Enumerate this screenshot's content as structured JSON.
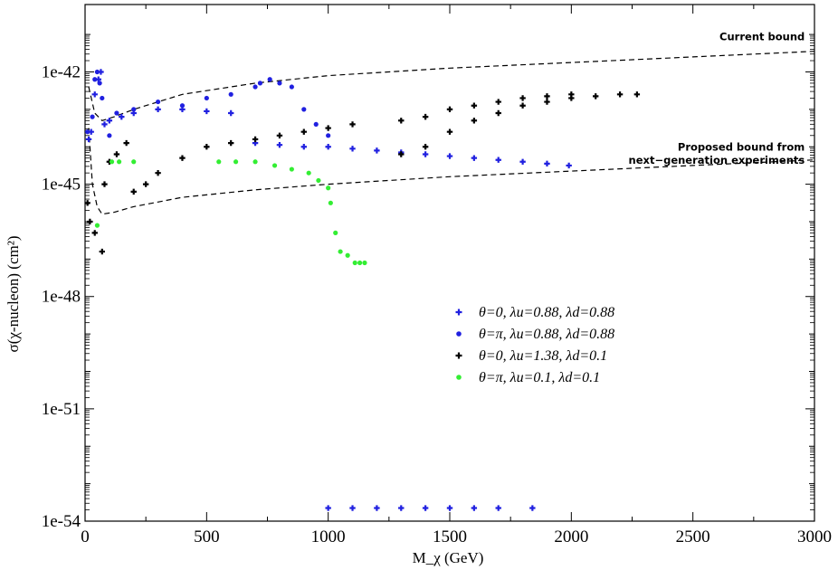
{
  "chart_data": {
    "type": "scatter",
    "title": "",
    "xlabel": "M_χ (GeV)",
    "ylabel": "σ(χ-nucleon) (cm²)",
    "xlim": [
      0,
      3000
    ],
    "ylim_log10": [
      -54,
      -40.2
    ],
    "yscale": "log",
    "grid": false,
    "legend_placement": "center-right",
    "x_ticks": [
      0,
      500,
      1000,
      1500,
      2000,
      2500,
      3000
    ],
    "x_tick_labels": [
      "0",
      "500",
      "1000",
      "1500",
      "2000",
      "2500",
      "3000"
    ],
    "y_ticks_log10": [
      -54,
      -51,
      -48,
      -45,
      -42
    ],
    "y_tick_labels": [
      "1e-54",
      "1e-51",
      "1e-48",
      "1e-45",
      "1e-42"
    ],
    "bounds": [
      {
        "label": "Current bound",
        "points": [
          [
            15,
            -42.4
          ],
          [
            40,
            -43.1
          ],
          [
            70,
            -43.3
          ],
          [
            120,
            -43.2
          ],
          [
            200,
            -43.0
          ],
          [
            400,
            -42.6
          ],
          [
            700,
            -42.3
          ],
          [
            1000,
            -42.1
          ],
          [
            1500,
            -41.9
          ],
          [
            2000,
            -41.75
          ],
          [
            2500,
            -41.6
          ],
          [
            3000,
            -41.45
          ]
        ]
      },
      {
        "label": "Proposed bound from next-generation experiments",
        "points": [
          [
            15,
            -43.5
          ],
          [
            30,
            -45.0
          ],
          [
            50,
            -45.6
          ],
          [
            70,
            -45.8
          ],
          [
            120,
            -45.75
          ],
          [
            200,
            -45.6
          ],
          [
            400,
            -45.35
          ],
          [
            700,
            -45.15
          ],
          [
            1000,
            -45.0
          ],
          [
            1500,
            -44.8
          ],
          [
            2000,
            -44.65
          ],
          [
            2500,
            -44.5
          ],
          [
            3000,
            -44.35
          ]
        ]
      }
    ],
    "annotations": [
      {
        "text": "Current bound",
        "x": 2960,
        "y_log10": -41.15
      },
      {
        "text": "Proposed bound from",
        "x": 2960,
        "y_log10": -44.1
      },
      {
        "text": "next−generation experiments",
        "x": 2960,
        "y_log10": -44.45
      }
    ],
    "series": [
      {
        "name": "θ=0, λu=0.88, λd=0.88",
        "marker": "plus",
        "color": "#2020e0",
        "points": [
          [
            15,
            -43.8
          ],
          [
            25,
            -43.6
          ],
          [
            40,
            -42.6
          ],
          [
            55,
            -42.2
          ],
          [
            65,
            -42.0
          ],
          [
            80,
            -43.4
          ],
          [
            100,
            -43.3
          ],
          [
            150,
            -43.2
          ],
          [
            200,
            -43.1
          ],
          [
            300,
            -43.0
          ],
          [
            400,
            -43.0
          ],
          [
            500,
            -43.05
          ],
          [
            600,
            -43.1
          ],
          [
            700,
            -43.9
          ],
          [
            800,
            -43.95
          ],
          [
            900,
            -44.0
          ],
          [
            1000,
            -44.0
          ],
          [
            1100,
            -44.05
          ],
          [
            1200,
            -44.1
          ],
          [
            1300,
            -44.15
          ],
          [
            1400,
            -44.2
          ],
          [
            1500,
            -44.25
          ],
          [
            1600,
            -44.3
          ],
          [
            1700,
            -44.35
          ],
          [
            1800,
            -44.4
          ],
          [
            1900,
            -44.45
          ],
          [
            1990,
            -44.5
          ],
          [
            1000,
            -53.65
          ],
          [
            1100,
            -53.65
          ],
          [
            1200,
            -53.65
          ],
          [
            1300,
            -53.65
          ],
          [
            1400,
            -53.65
          ],
          [
            1500,
            -53.65
          ],
          [
            1600,
            -53.65
          ],
          [
            1700,
            -53.65
          ],
          [
            1840,
            -53.65
          ]
        ]
      },
      {
        "name": "θ=π, λu=0.88, λd=0.88",
        "marker": "circle",
        "color": "#2020e0",
        "points": [
          [
            10,
            -43.6
          ],
          [
            30,
            -43.2
          ],
          [
            40,
            -42.2
          ],
          [
            50,
            -42.0
          ],
          [
            60,
            -42.3
          ],
          [
            70,
            -42.7
          ],
          [
            100,
            -43.7
          ],
          [
            130,
            -43.1
          ],
          [
            200,
            -43.0
          ],
          [
            300,
            -42.8
          ],
          [
            400,
            -42.9
          ],
          [
            500,
            -42.7
          ],
          [
            600,
            -42.6
          ],
          [
            700,
            -42.4
          ],
          [
            720,
            -42.3
          ],
          [
            760,
            -42.2
          ],
          [
            800,
            -42.3
          ],
          [
            850,
            -42.4
          ],
          [
            900,
            -43.0
          ],
          [
            950,
            -43.4
          ],
          [
            1000,
            -43.7
          ]
        ]
      },
      {
        "name": "θ=0, λu=1.38, λd=0.1",
        "marker": "plus",
        "color": "#000000",
        "points": [
          [
            10,
            -45.5
          ],
          [
            20,
            -46.0
          ],
          [
            40,
            -46.3
          ],
          [
            70,
            -46.8
          ],
          [
            80,
            -45.0
          ],
          [
            100,
            -44.4
          ],
          [
            130,
            -44.2
          ],
          [
            170,
            -43.9
          ],
          [
            200,
            -45.2
          ],
          [
            250,
            -45.0
          ],
          [
            300,
            -44.7
          ],
          [
            400,
            -44.3
          ],
          [
            500,
            -44.0
          ],
          [
            600,
            -43.9
          ],
          [
            700,
            -43.8
          ],
          [
            800,
            -43.7
          ],
          [
            900,
            -43.6
          ],
          [
            1000,
            -43.5
          ],
          [
            1100,
            -43.4
          ],
          [
            1300,
            -43.3
          ],
          [
            1300,
            -44.2
          ],
          [
            1400,
            -44.0
          ],
          [
            1500,
            -43.6
          ],
          [
            1600,
            -43.3
          ],
          [
            1700,
            -43.1
          ],
          [
            1800,
            -42.9
          ],
          [
            1900,
            -42.8
          ],
          [
            2000,
            -42.7
          ],
          [
            2100,
            -42.65
          ],
          [
            2270,
            -42.6
          ],
          [
            1400,
            -43.2
          ],
          [
            1500,
            -43.0
          ],
          [
            1600,
            -42.9
          ],
          [
            1700,
            -42.8
          ],
          [
            1800,
            -42.7
          ],
          [
            1900,
            -42.65
          ],
          [
            2000,
            -42.6
          ],
          [
            2200,
            -42.6
          ]
        ]
      },
      {
        "name": "θ=π, λu=0.1, λd=0.1",
        "marker": "circle",
        "color": "#33ee33",
        "points": [
          [
            50,
            -46.1
          ],
          [
            110,
            -44.4
          ],
          [
            140,
            -44.4
          ],
          [
            200,
            -44.4
          ],
          [
            550,
            -44.4
          ],
          [
            620,
            -44.4
          ],
          [
            700,
            -44.4
          ],
          [
            780,
            -44.5
          ],
          [
            850,
            -44.6
          ],
          [
            920,
            -44.7
          ],
          [
            960,
            -44.9
          ],
          [
            1000,
            -45.1
          ],
          [
            1010,
            -45.5
          ],
          [
            1030,
            -46.3
          ],
          [
            1050,
            -46.8
          ],
          [
            1080,
            -46.9
          ],
          [
            1110,
            -47.1
          ],
          [
            1130,
            -47.1
          ],
          [
            1150,
            -47.1
          ]
        ]
      }
    ]
  }
}
